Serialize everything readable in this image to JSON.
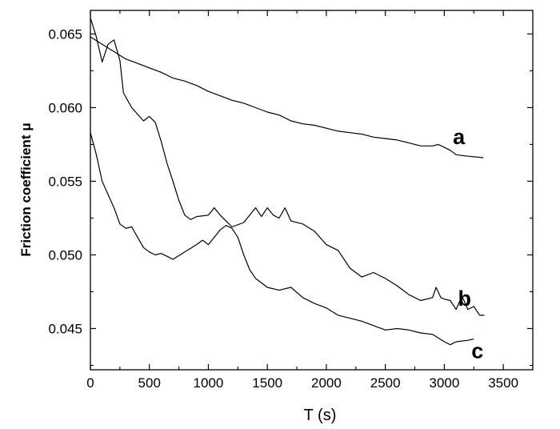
{
  "chart_data": {
    "type": "line",
    "title": "",
    "xlabel": "T (s)",
    "ylabel": "Friction coefficient  μ",
    "xlim": [
      0,
      3750
    ],
    "ylim": [
      0.0422,
      0.0666
    ],
    "xticks": [
      0,
      500,
      1000,
      1500,
      2000,
      2500,
      3000,
      3500
    ],
    "xtick_labels": [
      "0",
      "500",
      "1000",
      "1500",
      "2000",
      "2500",
      "3000",
      "3500"
    ],
    "yticks": [
      0.045,
      0.05,
      0.055,
      0.06,
      0.065
    ],
    "ytick_labels": [
      "0.045",
      "0.050",
      "0.055",
      "0.060",
      "0.065"
    ],
    "grid": false,
    "legend": "none",
    "series": [
      {
        "name": "a",
        "x": [
          0,
          100,
          200,
          300,
          400,
          500,
          600,
          700,
          800,
          900,
          1000,
          1100,
          1200,
          1300,
          1400,
          1500,
          1600,
          1700,
          1800,
          1900,
          2000,
          2100,
          2200,
          2300,
          2400,
          2500,
          2600,
          2700,
          2800,
          2900,
          2950,
          3000,
          3050,
          3100,
          3200,
          3330
        ],
        "values": [
          0.0648,
          0.0643,
          0.0638,
          0.0633,
          0.063,
          0.0627,
          0.0624,
          0.062,
          0.0618,
          0.0615,
          0.0611,
          0.0608,
          0.0605,
          0.0603,
          0.06,
          0.0597,
          0.0595,
          0.0591,
          0.0589,
          0.0588,
          0.0586,
          0.0584,
          0.0583,
          0.0582,
          0.058,
          0.0579,
          0.0578,
          0.0576,
          0.0574,
          0.0574,
          0.0575,
          0.0573,
          0.0571,
          0.0568,
          0.0567,
          0.0566
        ]
      },
      {
        "name": "b",
        "x": [
          0,
          50,
          100,
          150,
          200,
          250,
          280,
          350,
          450,
          500,
          550,
          600,
          650,
          700,
          750,
          800,
          850,
          900,
          1000,
          1050,
          1100,
          1150,
          1200,
          1300,
          1400,
          1450,
          1500,
          1550,
          1600,
          1650,
          1700,
          1800,
          1900,
          2000,
          2100,
          2200,
          2300,
          2400,
          2500,
          2600,
          2700,
          2800,
          2900,
          2930,
          2970,
          3000,
          3050,
          3100,
          3150,
          3200,
          3250,
          3300,
          3340
        ],
        "values": [
          0.0661,
          0.0648,
          0.0631,
          0.0643,
          0.0646,
          0.0632,
          0.061,
          0.06,
          0.0591,
          0.0594,
          0.059,
          0.0577,
          0.0562,
          0.055,
          0.0537,
          0.0527,
          0.0524,
          0.0526,
          0.0527,
          0.0532,
          0.0527,
          0.0523,
          0.0519,
          0.0522,
          0.0532,
          0.0526,
          0.0532,
          0.0527,
          0.0525,
          0.0532,
          0.0523,
          0.0521,
          0.0516,
          0.0507,
          0.0503,
          0.0491,
          0.0485,
          0.0488,
          0.0484,
          0.0479,
          0.0473,
          0.0469,
          0.0471,
          0.0478,
          0.0471,
          0.047,
          0.0469,
          0.0463,
          0.0472,
          0.0463,
          0.0465,
          0.0459,
          0.0459
        ]
      },
      {
        "name": "c",
        "x": [
          0,
          50,
          100,
          150,
          200,
          250,
          300,
          350,
          400,
          450,
          500,
          550,
          600,
          650,
          700,
          800,
          900,
          950,
          1000,
          1100,
          1150,
          1200,
          1250,
          1300,
          1350,
          1400,
          1500,
          1600,
          1700,
          1800,
          1900,
          2000,
          2100,
          2200,
          2300,
          2400,
          2500,
          2600,
          2700,
          2800,
          2900,
          3000,
          3050,
          3100,
          3200,
          3250
        ],
        "values": [
          0.0583,
          0.0568,
          0.055,
          0.0541,
          0.0532,
          0.0521,
          0.0518,
          0.0519,
          0.0512,
          0.0505,
          0.0502,
          0.05,
          0.0501,
          0.0499,
          0.0497,
          0.0502,
          0.0507,
          0.051,
          0.0507,
          0.0517,
          0.052,
          0.0518,
          0.0512,
          0.05,
          0.049,
          0.0484,
          0.0478,
          0.0476,
          0.0478,
          0.0471,
          0.0467,
          0.0464,
          0.0459,
          0.0457,
          0.0455,
          0.0452,
          0.0449,
          0.045,
          0.0449,
          0.0447,
          0.0446,
          0.0441,
          0.0439,
          0.0441,
          0.0442,
          0.0443
        ]
      }
    ],
    "annotations": [
      {
        "text": "a",
        "series": "a"
      },
      {
        "text": "b",
        "series": "b"
      },
      {
        "text": "c",
        "series": "c"
      }
    ]
  }
}
